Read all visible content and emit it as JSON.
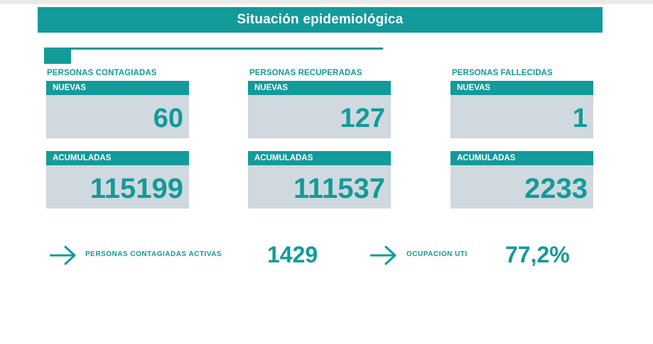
{
  "title": "Situación epidemiológica",
  "groups": [
    {
      "label": "PERSONAS CONTAGIADAS",
      "new_label": "NUEVAS",
      "new_value": "60",
      "acc_label": "ACUMULADAS",
      "acc_value": "115199"
    },
    {
      "label": "PERSONAS RECUPERADAS",
      "new_label": "NUEVAS",
      "new_value": "127",
      "acc_label": "ACUMULADAS",
      "acc_value": "111537"
    },
    {
      "label": "PERSONAS FALLECIDAS",
      "new_label": "NUEVAS",
      "new_value": "1",
      "acc_label": "ACUMULADAS",
      "acc_value": "2233"
    }
  ],
  "bottom": {
    "active_label": "PERSONAS CONTAGIADAS ACTIVAS",
    "active_value": "1429",
    "active_icon": "arrow-right-icon",
    "uti_label": "OCUPACION UTI",
    "uti_value": "77,2%",
    "uti_icon": "arrow-right-icon"
  },
  "colors": {
    "accent": "#139a9a",
    "card_bg": "#cfd9df"
  }
}
